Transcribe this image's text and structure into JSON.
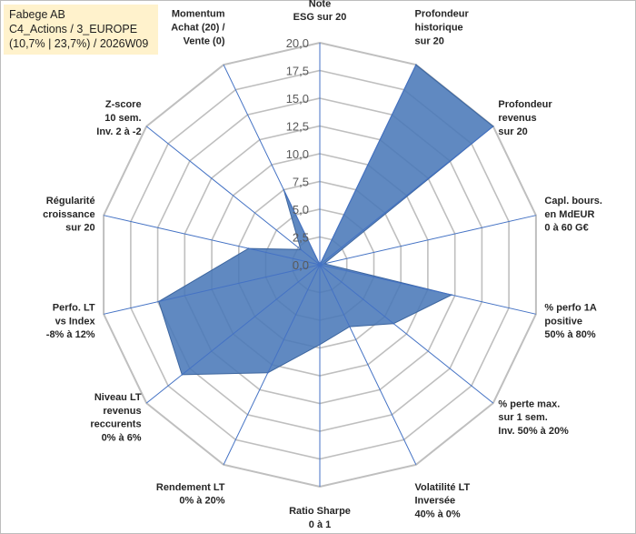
{
  "header": {
    "line1": "Fabege AB",
    "line2": "C4_Actions / 3_EUROPE",
    "line3": "(10,7% | 23,7%) / 2026W09"
  },
  "chart_data": {
    "type": "radar",
    "title": "Fabege AB",
    "rmin": 0,
    "rmax": 20,
    "ticks": [
      "0,0",
      "2,5",
      "5,0",
      "7,5",
      "10,0",
      "12,5",
      "15,0",
      "17,5",
      "20,0"
    ],
    "axes": [
      [
        "Note",
        "ESG sur 20"
      ],
      [
        "Profondeur",
        "historique",
        "sur 20"
      ],
      [
        "Profondeur",
        "revenus",
        "sur 20"
      ],
      [
        "Capl. bours.",
        "en MdEUR",
        "0 à 60 G€"
      ],
      [
        "% perfo 1A",
        "positive",
        "50% à 80%"
      ],
      [
        "% perte max.",
        "sur 1 sem.",
        "Inv. 50% à 20%"
      ],
      [
        "Volatilité LT",
        "Inversée",
        "40% à 0%"
      ],
      [
        "Ratio Sharpe",
        "0 à 1"
      ],
      [
        "Rendement LT",
        "0% à 20%"
      ],
      [
        "Niveau LT",
        "revenus",
        "reccurents",
        "0% à 6%"
      ],
      [
        "Perfo. LT",
        "vs Index",
        "-8% à 12%"
      ],
      [
        "Régularité",
        "croissance",
        "sur 20"
      ],
      [
        "Z-score",
        "10 sem.",
        "Inv. 2 à -2"
      ],
      [
        "Momentum",
        "Achat (20) /",
        "Vente (0)"
      ]
    ],
    "series": [
      {
        "name": "Fabege AB",
        "values": [
          0,
          20,
          20,
          0.4,
          12.2,
          8.5,
          6.2,
          7.2,
          10.8,
          15.9,
          14.9,
          6.6,
          2.2,
          7.5
        ]
      }
    ],
    "colors": {
      "fill": "#4a79b8",
      "stroke": "#3d669f",
      "spoke": "#4472c4",
      "grid": "#bfbfbf"
    }
  }
}
